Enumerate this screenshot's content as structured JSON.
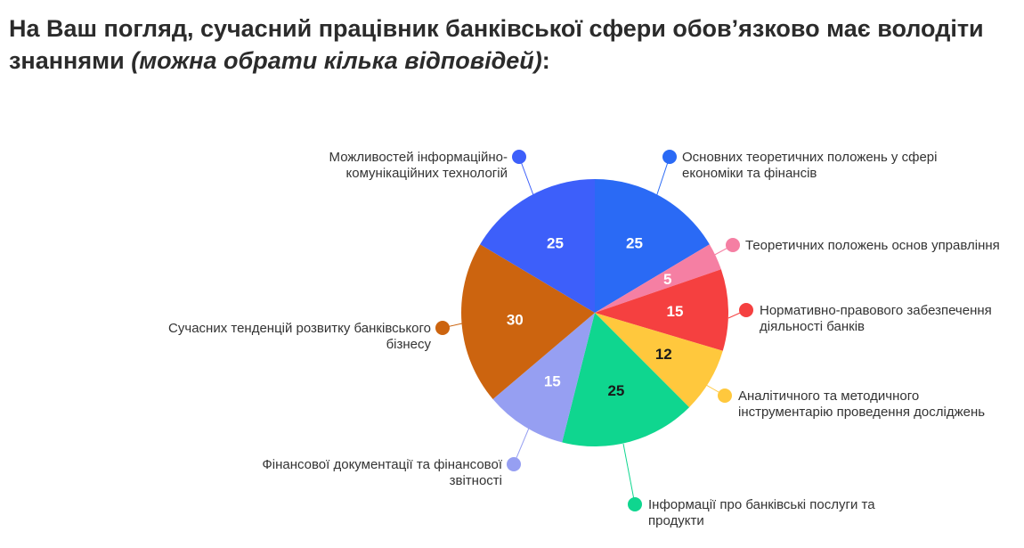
{
  "title": {
    "main": "На Ваш погляд, сучасний працівник банківської сфери обов’язково має володіти знаннями ",
    "italic": "(можна обрати кілька відповідей)",
    "suffix": ":"
  },
  "chart_data": {
    "type": "pie",
    "slices": [
      {
        "label": "Основних теоретичних положень у сфері економіки та фінансів",
        "value": 25,
        "color": "#2a6af5",
        "value_color": "#ffffff"
      },
      {
        "label": "Теоретичних положень основ управління",
        "value": 5,
        "color": "#f57fa3",
        "value_color": "#ffffff"
      },
      {
        "label": "Нормативно-правового забезпечення діяльності банків",
        "value": 15,
        "color": "#f54040",
        "value_color": "#ffffff"
      },
      {
        "label": "Аналітичного та методичного інструментарію проведення досліджень",
        "value": 12,
        "color": "#ffc83d",
        "value_color": "#1a1a1a"
      },
      {
        "label": "Інформації про банківські послуги та продукти",
        "value": 25,
        "color": "#0fd68f",
        "value_color": "#1a1a1a"
      },
      {
        "label": "Фінансової документації та фінансової звітності",
        "value": 15,
        "color": "#969ff2",
        "value_color": "#ffffff"
      },
      {
        "label": "Сучасних тенденцій розвитку банківського бізнесу",
        "value": 30,
        "color": "#cc640f",
        "value_color": "#ffffff"
      },
      {
        "label": "Можливостей інформаційно-комунікаційних технологій",
        "value": 25,
        "color": "#3d5ffa",
        "value_color": "#ffffff"
      }
    ]
  }
}
